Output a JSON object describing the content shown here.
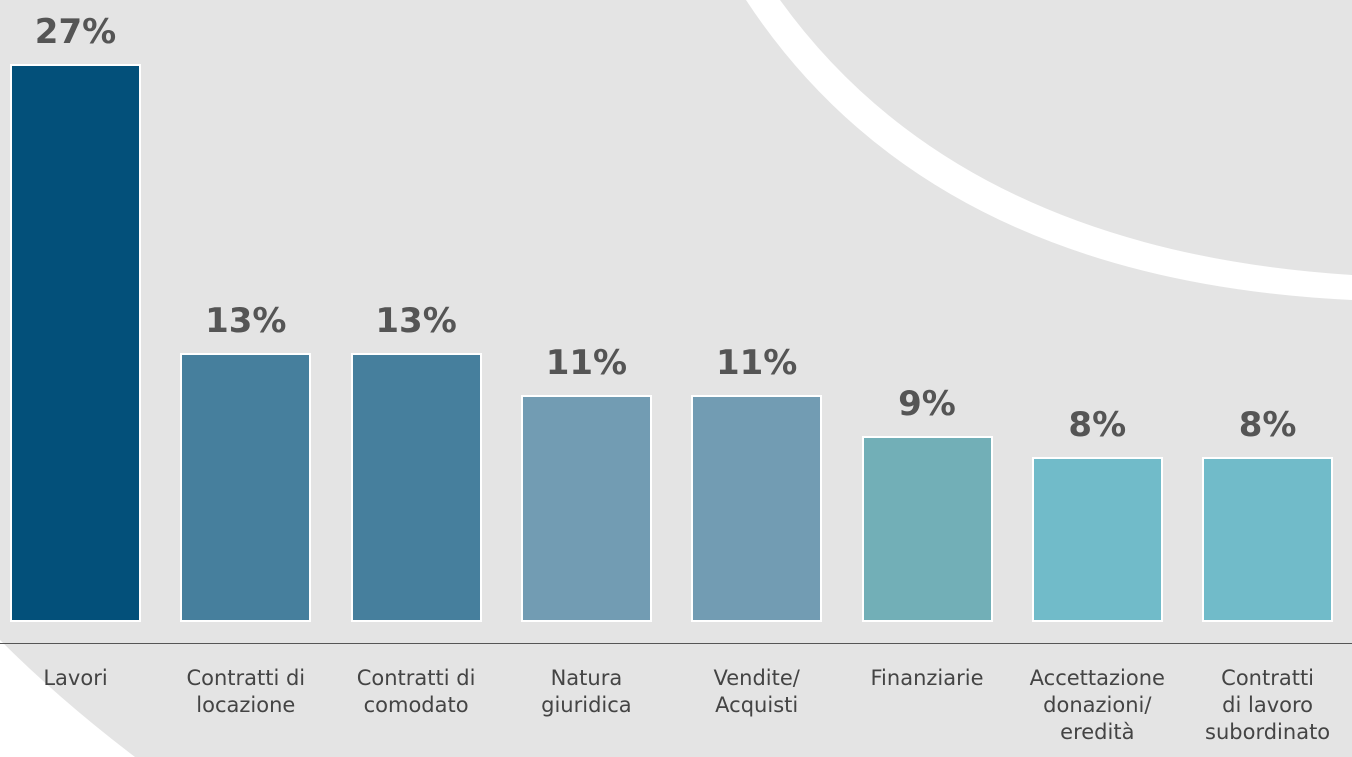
{
  "chart_data": {
    "type": "bar",
    "categories": [
      "Lavori",
      "Contratti di\nlocazione",
      "Contratti di\ncomodato",
      "Natura\ngiuridica",
      "Vendite/\nAcquisti",
      "Finanziarie",
      "Accettazione\ndonazioni/\neredità",
      "Contratti\ndi lavoro\nsubordinato"
    ],
    "values": [
      27,
      13,
      13,
      11,
      11,
      9,
      8,
      8
    ],
    "value_labels": [
      "27%",
      "13%",
      "13%",
      "11%",
      "11%",
      "9%",
      "8%",
      "8%"
    ],
    "colors": [
      "#03507a",
      "#467f9d",
      "#467f9d",
      "#729cb3",
      "#729cb3",
      "#72afb7",
      "#71bbc9",
      "#71bbc9"
    ],
    "ylim": [
      0,
      27
    ]
  }
}
